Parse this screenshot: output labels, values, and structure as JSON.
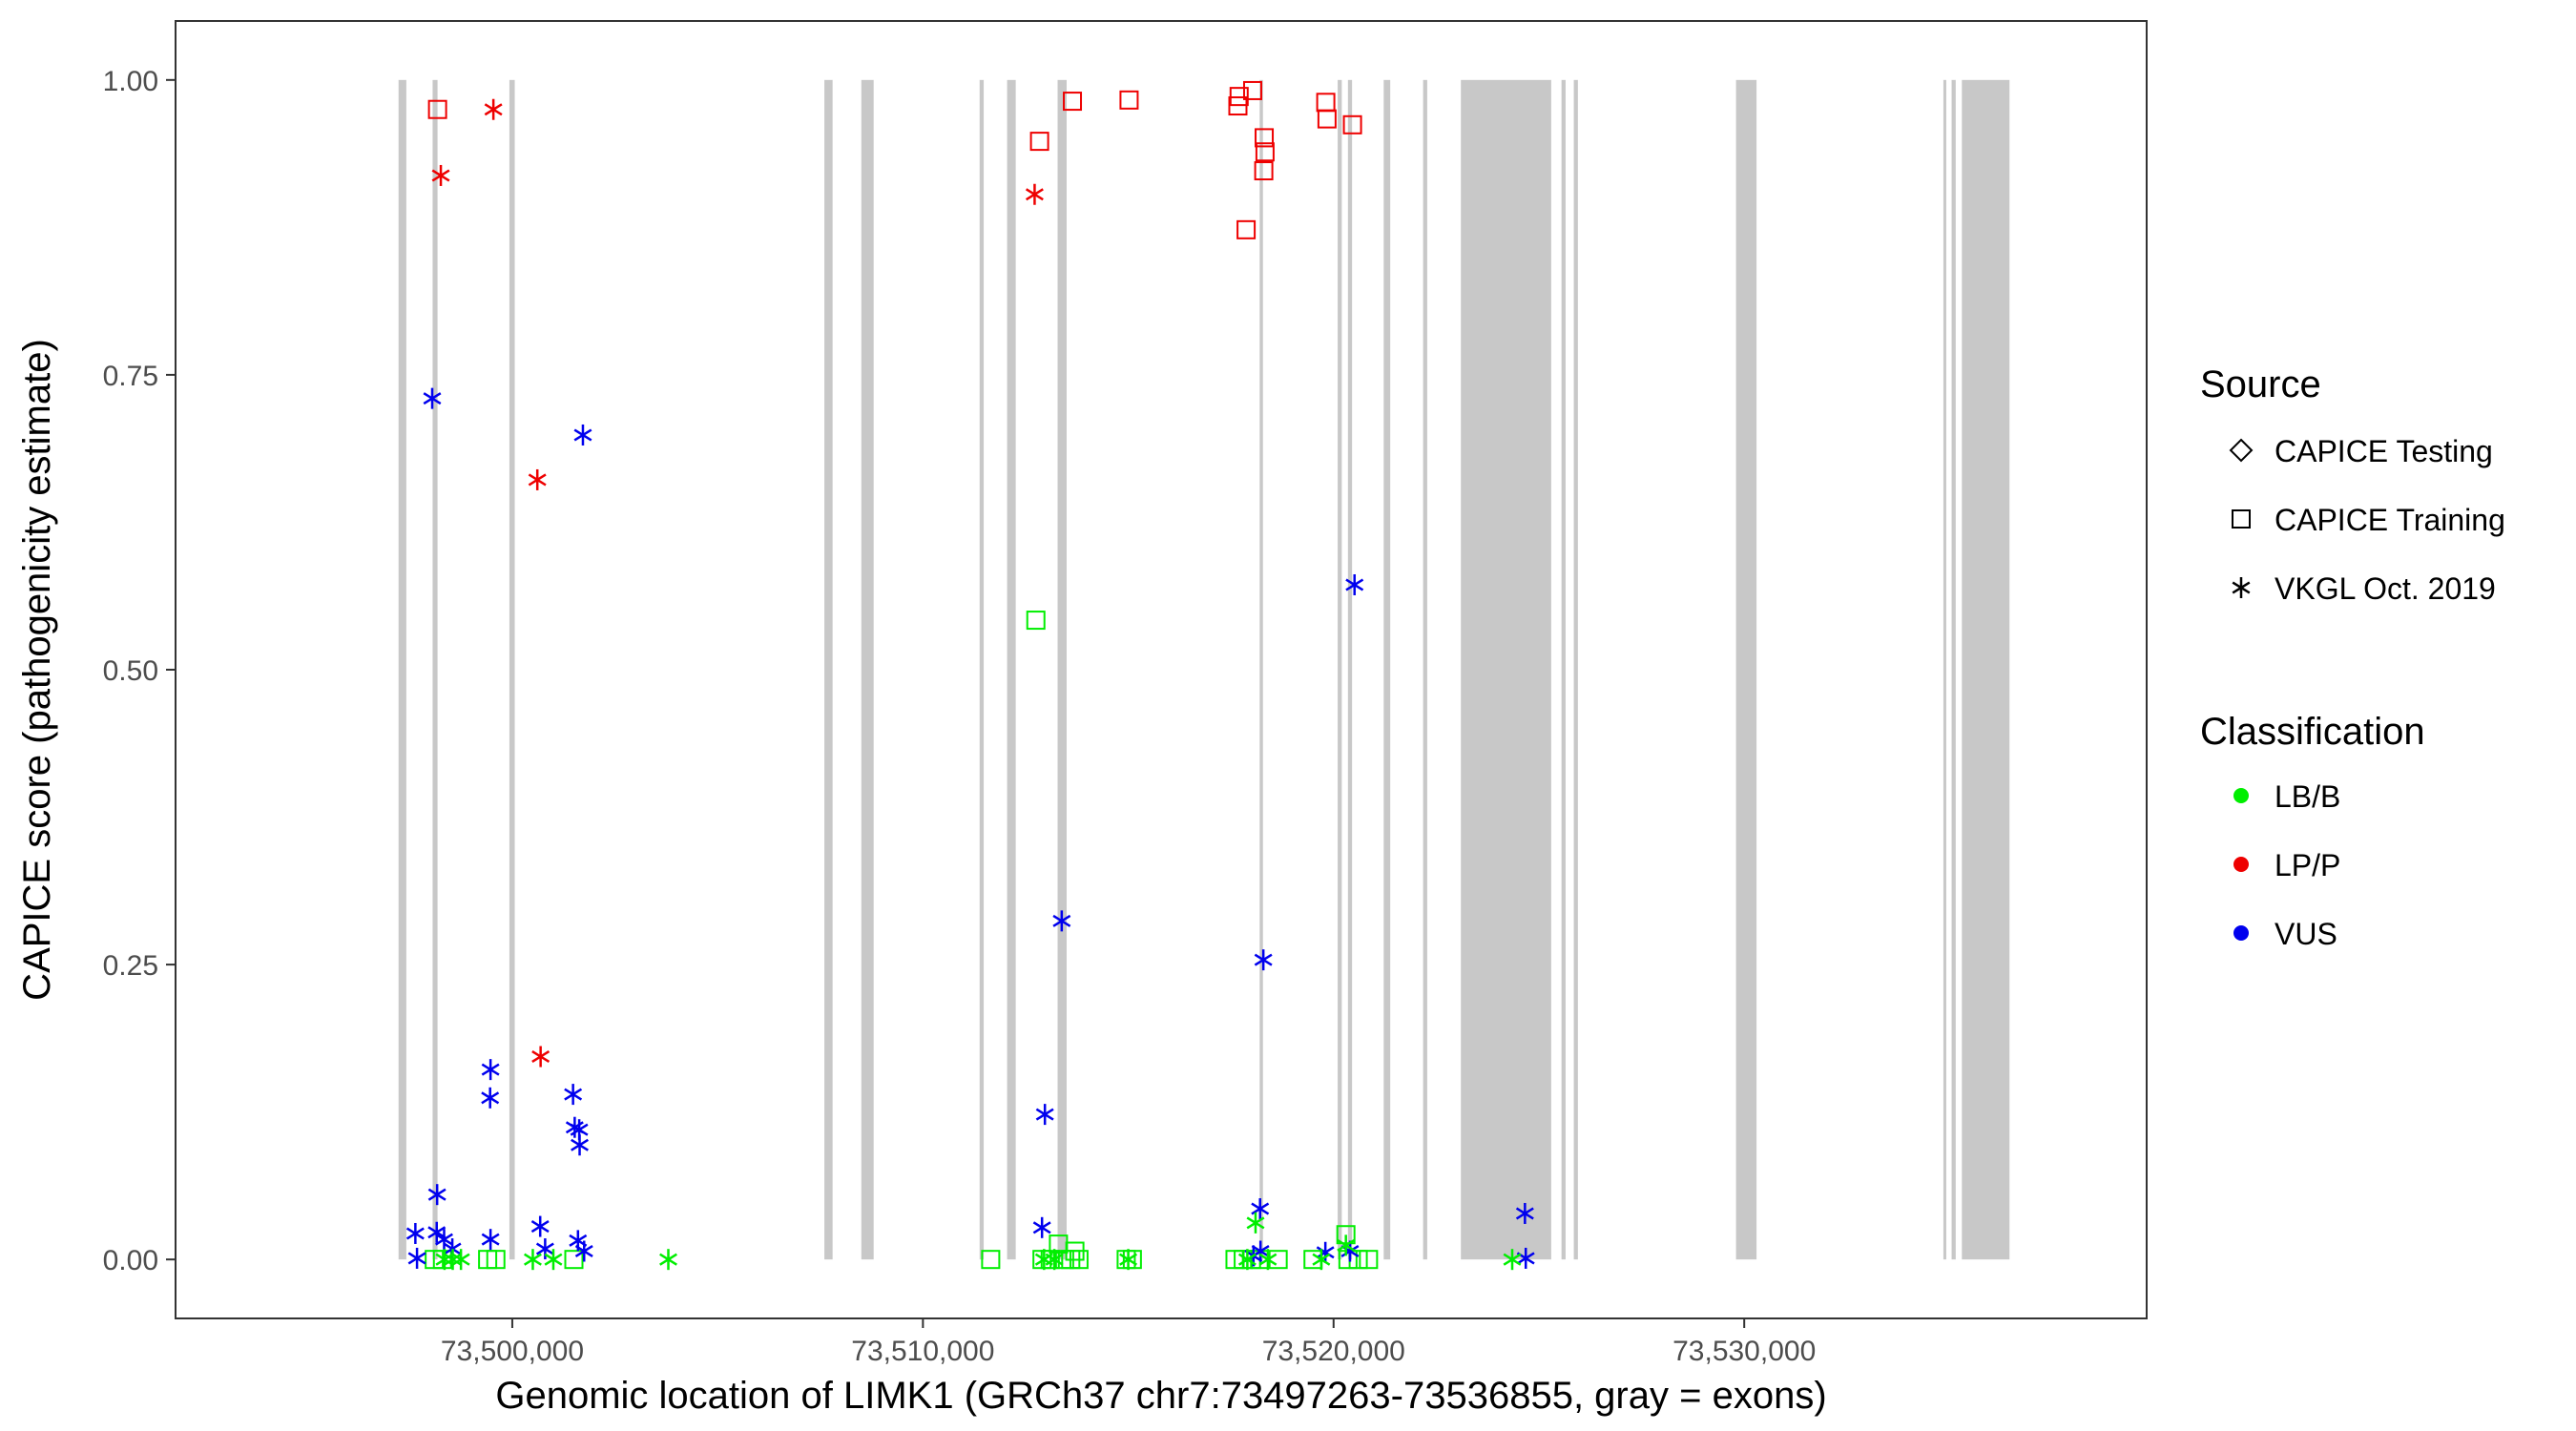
{
  "chart_data": {
    "type": "scatter",
    "title": "",
    "xlabel": "Genomic location of LIMK1 (GRCh37 chr7:73497263-73536855, gray = exons)",
    "ylabel": "CAPICE score (pathogenicity estimate)",
    "xlim": [
      73491800,
      73539800
    ],
    "ylim": [
      -0.05,
      1.05
    ],
    "x_ticks": [
      73500000,
      73510000,
      73520000,
      73530000
    ],
    "x_tick_labels": [
      "73,500,000",
      "73,510,000",
      "73,520,000",
      "73,530,000"
    ],
    "y_ticks": [
      0,
      0.25,
      0.5,
      0.75,
      1
    ],
    "y_tick_labels": [
      "0.00",
      "0.25",
      "0.50",
      "0.75",
      "1.00"
    ],
    "grid": false,
    "exons": [
      [
        73497230,
        73497420
      ],
      [
        73498060,
        73498180
      ],
      [
        73499930,
        73500060
      ],
      [
        73507600,
        73507800
      ],
      [
        73508500,
        73508800
      ],
      [
        73511380,
        73511480
      ],
      [
        73512050,
        73512260
      ],
      [
        73513280,
        73513500
      ],
      [
        73518200,
        73518280
      ],
      [
        73520100,
        73520200
      ],
      [
        73520350,
        73520450
      ],
      [
        73521220,
        73521380
      ],
      [
        73522180,
        73522280
      ],
      [
        73523100,
        73525300
      ],
      [
        73525550,
        73525650
      ],
      [
        73525850,
        73525950
      ],
      [
        73529800,
        73530300
      ],
      [
        73534850,
        73534920
      ],
      [
        73535050,
        73535150
      ],
      [
        73535300,
        73536460
      ]
    ],
    "legends": [
      {
        "title": "Source",
        "position": "right",
        "entries": [
          {
            "label": "CAPICE Testing",
            "shape": "diamond"
          },
          {
            "label": "CAPICE Training",
            "shape": "square"
          },
          {
            "label": "VKGL Oct. 2019",
            "shape": "asterisk"
          }
        ]
      },
      {
        "title": "Classification",
        "position": "right",
        "entries": [
          {
            "label": "LB/B",
            "color": "#00ee00"
          },
          {
            "label": "LP/P",
            "color": "#ee0000"
          },
          {
            "label": "VUS",
            "color": "#0000ee"
          }
        ]
      }
    ],
    "series": [
      {
        "name": "CAPICE Training",
        "class": "LP/P",
        "shape": "square",
        "color": "#ee0000",
        "points": [
          [
            73498180,
            0.975
          ],
          [
            73512840,
            0.948
          ],
          [
            73513640,
            0.982
          ],
          [
            73515020,
            0.983
          ],
          [
            73517670,
            0.978
          ],
          [
            73517700,
            0.986
          ],
          [
            73518030,
            0.991
          ],
          [
            73517870,
            0.873
          ],
          [
            73518310,
            0.951
          ],
          [
            73518330,
            0.939
          ],
          [
            73518300,
            0.923
          ],
          [
            73519810,
            0.981
          ],
          [
            73519840,
            0.967
          ],
          [
            73520460,
            0.962
          ]
        ]
      },
      {
        "name": "CAPICE Training",
        "class": "LB/B",
        "shape": "square",
        "color": "#00ee00",
        "points": [
          [
            73512750,
            0.542
          ],
          [
            73498100,
            0.0
          ],
          [
            73498300,
            0.0
          ],
          [
            73499400,
            0.0
          ],
          [
            73499600,
            0.0
          ],
          [
            73501500,
            0.0
          ],
          [
            73511650,
            0.0
          ],
          [
            73512900,
            0.0
          ],
          [
            73513100,
            0.0
          ],
          [
            73513300,
            0.013
          ],
          [
            73513450,
            0.0
          ],
          [
            73513600,
            0.0
          ],
          [
            73513700,
            0.007
          ],
          [
            73513800,
            0.0
          ],
          [
            73514950,
            0.0
          ],
          [
            73515100,
            0.0
          ],
          [
            73517600,
            0.0
          ],
          [
            73517800,
            0.0
          ],
          [
            73518000,
            0.0
          ],
          [
            73518200,
            0.0
          ],
          [
            73518650,
            0.0
          ],
          [
            73519500,
            0.0
          ],
          [
            73520300,
            0.021
          ],
          [
            73520350,
            0.0
          ],
          [
            73520600,
            0.0
          ],
          [
            73520850,
            0.0
          ]
        ]
      },
      {
        "name": "VKGL Oct. 2019",
        "class": "LP/P",
        "shape": "asterisk",
        "color": "#ee0000",
        "points": [
          [
            73499540,
            0.975
          ],
          [
            73498260,
            0.919
          ],
          [
            73512720,
            0.903
          ],
          [
            73500610,
            0.661
          ],
          [
            73500690,
            0.172
          ]
        ]
      },
      {
        "name": "VKGL Oct. 2019",
        "class": "VUS",
        "shape": "asterisk",
        "color": "#0000ee",
        "points": [
          [
            73498050,
            0.73
          ],
          [
            73501720,
            0.699
          ],
          [
            73520510,
            0.572
          ],
          [
            73513380,
            0.287
          ],
          [
            73518290,
            0.254
          ],
          [
            73499470,
            0.161
          ],
          [
            73499460,
            0.137
          ],
          [
            73501480,
            0.14
          ],
          [
            73512970,
            0.123
          ],
          [
            73501520,
            0.112
          ],
          [
            73501630,
            0.11
          ],
          [
            73501640,
            0.097
          ],
          [
            73498170,
            0.055
          ],
          [
            73518210,
            0.043
          ],
          [
            73524660,
            0.039
          ],
          [
            73500680,
            0.028
          ],
          [
            73512900,
            0.027
          ],
          [
            73497640,
            0.022
          ],
          [
            73498160,
            0.023
          ],
          [
            73499470,
            0.017
          ],
          [
            73501600,
            0.016
          ],
          [
            73498340,
            0.017
          ],
          [
            73498540,
            0.009
          ],
          [
            73500800,
            0.009
          ],
          [
            73501750,
            0.007
          ],
          [
            73518220,
            0.007
          ],
          [
            73519800,
            0.006
          ],
          [
            73520400,
            0.007
          ],
          [
            73518050,
            0.003
          ],
          [
            73497680,
            0.001
          ],
          [
            73524680,
            0.001
          ]
        ]
      },
      {
        "name": "VKGL Oct. 2019",
        "class": "LB/B",
        "shape": "asterisk",
        "color": "#00ee00",
        "points": [
          [
            73498350,
            0.0
          ],
          [
            73498550,
            0.0
          ],
          [
            73498750,
            0.0
          ],
          [
            73500500,
            0.0
          ],
          [
            73501000,
            0.0
          ],
          [
            73503800,
            0.0
          ],
          [
            73512950,
            0.0
          ],
          [
            73513200,
            0.0
          ],
          [
            73515000,
            0.0
          ],
          [
            73517900,
            0.0
          ],
          [
            73518100,
            0.031
          ],
          [
            73518400,
            0.0
          ],
          [
            73519700,
            0.0
          ],
          [
            73520300,
            0.012
          ],
          [
            73524350,
            0.0
          ]
        ]
      }
    ]
  }
}
